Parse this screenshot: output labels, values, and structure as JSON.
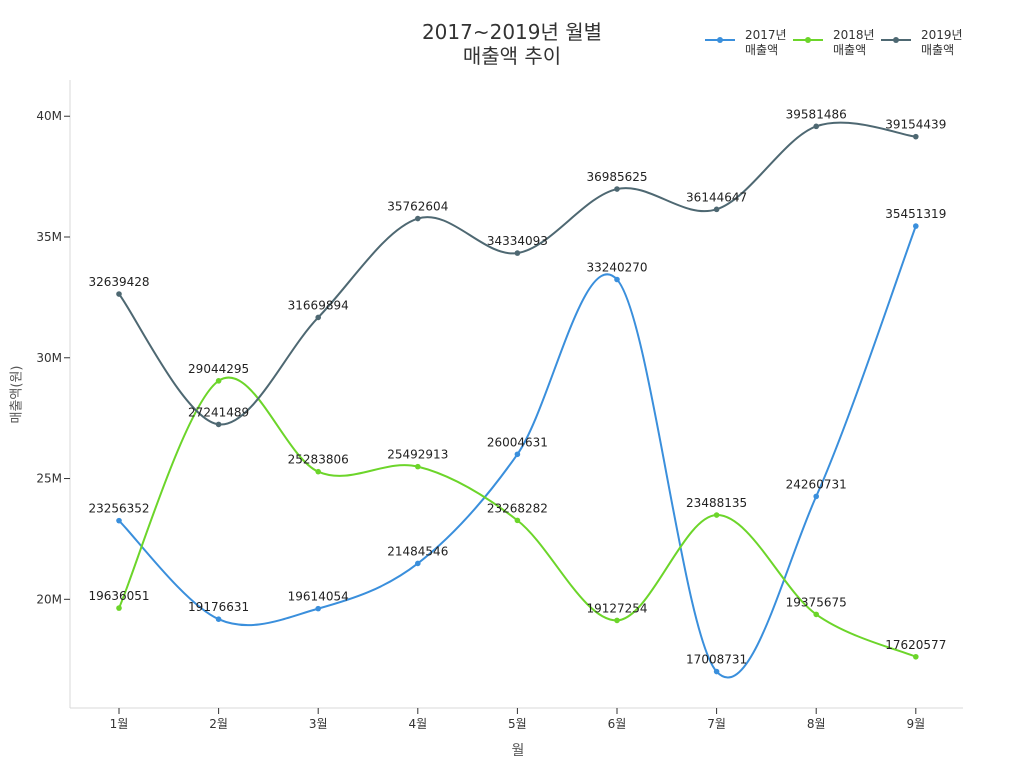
{
  "chart_data": {
    "type": "line",
    "title": [
      "2017~2019년 월별",
      "매출액 추이"
    ],
    "xlabel": "월",
    "ylabel": "매출액(원)",
    "categories": [
      "1월",
      "2월",
      "3월",
      "4월",
      "5월",
      "6월",
      "7월",
      "8월",
      "9월"
    ],
    "ylim": [
      15500000,
      41500000
    ],
    "yticks": [
      {
        "value": 20000000,
        "label": "20M"
      },
      {
        "value": 25000000,
        "label": "25M"
      },
      {
        "value": 30000000,
        "label": "30M"
      },
      {
        "value": 35000000,
        "label": "35M"
      },
      {
        "value": 40000000,
        "label": "40M"
      }
    ],
    "grid": false,
    "legend_position": "top-right",
    "series": [
      {
        "name": [
          "2017년",
          "매출액"
        ],
        "color": "#3a8fdc",
        "values": [
          23256352,
          19176631,
          19614054,
          21484546,
          26004631,
          33240270,
          17008731,
          24260731,
          35451319
        ]
      },
      {
        "name": [
          "2018년",
          "매출액"
        ],
        "color": "#6cd52a",
        "values": [
          19636051,
          29044295,
          25283806,
          25492913,
          23268282,
          19127254,
          23488135,
          19375675,
          17620577
        ]
      },
      {
        "name": [
          "2019년",
          "매출액"
        ],
        "color": "#4e6872",
        "values": [
          32639428,
          27241489,
          31669894,
          35762604,
          34334093,
          36985625,
          36144647,
          39581486,
          39154439
        ]
      }
    ]
  }
}
